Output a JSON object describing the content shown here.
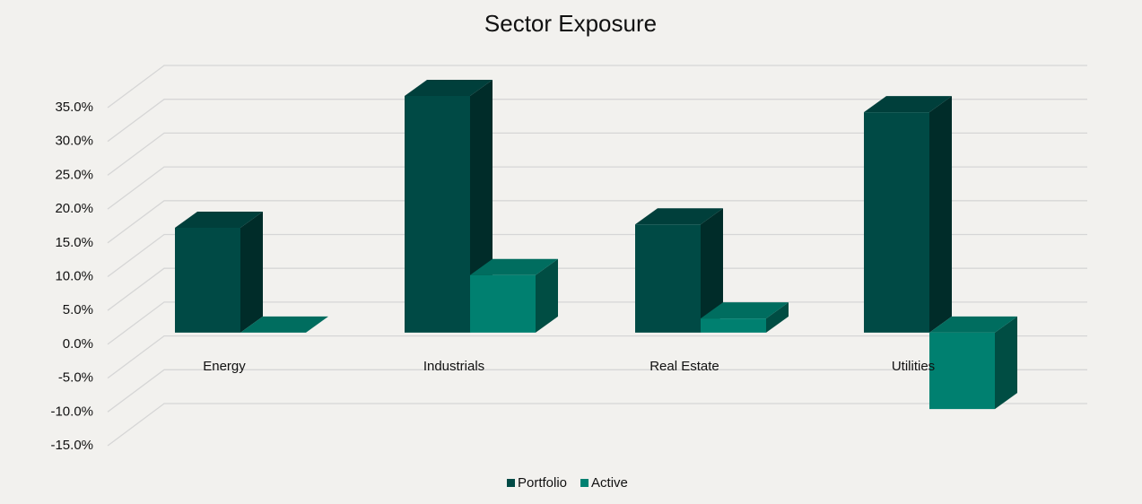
{
  "chart_data": {
    "type": "bar3d",
    "title": "Sector Exposure",
    "categories": [
      "Energy",
      "Industrials",
      "Real Estate",
      "Utilities"
    ],
    "series": [
      {
        "name": "Portfolio",
        "color": "#004a45",
        "values": [
          15.5,
          35.0,
          16.0,
          32.6
        ]
      },
      {
        "name": "Active",
        "color": "#008070",
        "values": [
          0.0,
          8.5,
          2.1,
          -11.3
        ]
      }
    ],
    "ylim": [
      -15,
      35
    ],
    "yticks": [
      {
        "value": -15,
        "label": "-15.0%"
      },
      {
        "value": -10,
        "label": "-10.0%"
      },
      {
        "value": -5,
        "label": "-5.0%"
      },
      {
        "value": 0,
        "label": "0.0%"
      },
      {
        "value": 5,
        "label": "5.0%"
      },
      {
        "value": 10,
        "label": "10.0%"
      },
      {
        "value": 15,
        "label": "15.0%"
      },
      {
        "value": 20,
        "label": "20.0%"
      },
      {
        "value": 25,
        "label": "25.0%"
      },
      {
        "value": 30,
        "label": "30.0%"
      },
      {
        "value": 35,
        "label": "35.0%"
      }
    ],
    "grid": true,
    "legend": "bottom"
  }
}
